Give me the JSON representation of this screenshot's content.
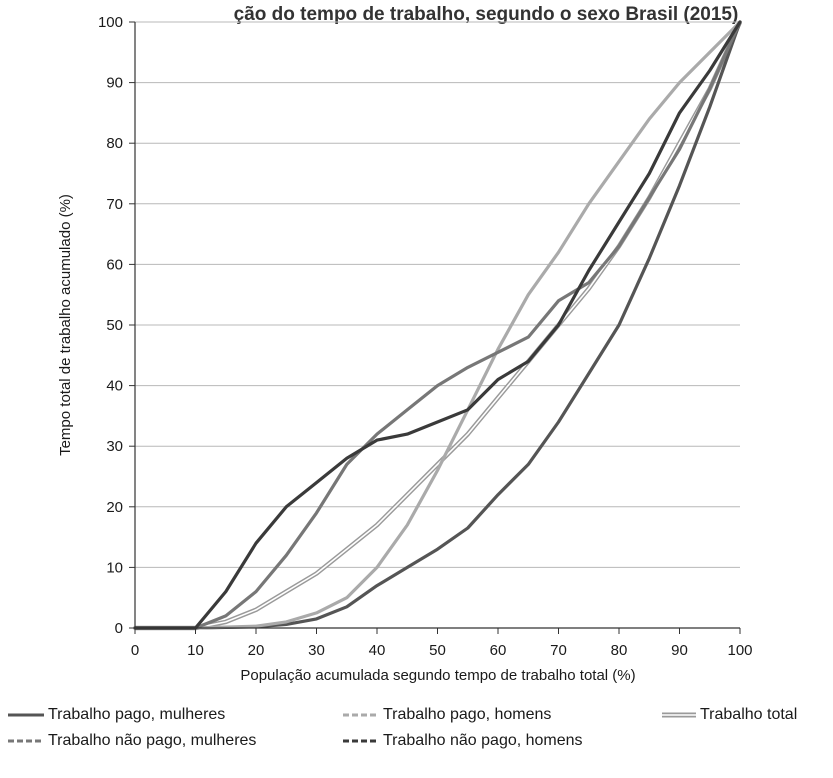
{
  "chart_data": {
    "type": "line",
    "title": "ção do tempo de trabalho, segundo o sexo Brasil (2015)",
    "xlabel": "População acumulada segundo tempo de trabalho total (%)",
    "ylabel": "Tempo total de trabalho acumulado (%)",
    "xlim": [
      0,
      100
    ],
    "ylim": [
      0,
      100
    ],
    "xticks": [
      "0",
      "10",
      "20",
      "30",
      "40",
      "50",
      "60",
      "70",
      "80",
      "90",
      "100"
    ],
    "yticks": [
      "0",
      "10",
      "20",
      "30",
      "40",
      "50",
      "60",
      "70",
      "80",
      "90",
      "100"
    ],
    "grid": "horizontal",
    "legend_position": "bottom",
    "series": [
      {
        "name": "Trabalho pago, mulheres",
        "color": "#555555",
        "style": "solid",
        "x": [
          0,
          10,
          20,
          25,
          30,
          35,
          40,
          45,
          50,
          55,
          60,
          65,
          70,
          75,
          80,
          85,
          90,
          95,
          100
        ],
        "y": [
          0,
          0,
          0.2,
          0.6,
          1.5,
          3.5,
          7,
          10,
          13,
          16.5,
          22,
          27,
          34,
          42,
          50,
          61,
          73,
          86,
          100
        ]
      },
      {
        "name": "Trabalho pago, homens",
        "color": "#aaaaaa",
        "style": "dashed",
        "x": [
          0,
          10,
          20,
          25,
          30,
          35,
          40,
          45,
          50,
          55,
          60,
          65,
          70,
          75,
          80,
          85,
          90,
          95,
          100
        ],
        "y": [
          0,
          0,
          0.3,
          1,
          2.5,
          5,
          10,
          17,
          26,
          36,
          46,
          55,
          62,
          70,
          77,
          84,
          90,
          95,
          100
        ]
      },
      {
        "name": "Trabalho total",
        "color": "#9a9a9a",
        "style": "double",
        "x": [
          0,
          10,
          15,
          20,
          25,
          30,
          35,
          40,
          45,
          50,
          55,
          60,
          65,
          70,
          75,
          80,
          85,
          90,
          95,
          100
        ],
        "y": [
          0,
          0,
          1,
          3,
          6,
          9,
          13,
          17,
          22,
          27,
          32,
          38,
          44,
          50,
          56,
          63,
          71,
          80,
          89,
          100
        ]
      },
      {
        "name": "Trabalho não pago, mulheres",
        "color": "#777777",
        "style": "dashed",
        "x": [
          0,
          10,
          15,
          20,
          25,
          30,
          35,
          40,
          45,
          50,
          55,
          60,
          65,
          70,
          75,
          80,
          85,
          90,
          95,
          100
        ],
        "y": [
          0,
          0,
          2,
          6,
          12,
          19,
          27,
          32,
          36,
          40,
          43,
          45.5,
          48,
          54,
          57,
          63,
          71,
          79,
          89,
          100
        ]
      },
      {
        "name": "Trabalho não pago, homens",
        "color": "#3a3a3a",
        "style": "dashed",
        "x": [
          0,
          10,
          15,
          20,
          25,
          30,
          35,
          40,
          45,
          50,
          55,
          60,
          65,
          70,
          75,
          80,
          85,
          90,
          95,
          100
        ],
        "y": [
          0,
          0,
          6,
          14,
          20,
          24,
          28,
          31,
          32,
          34,
          36,
          41,
          44,
          50,
          59,
          67,
          75,
          85,
          92,
          100
        ]
      }
    ]
  }
}
